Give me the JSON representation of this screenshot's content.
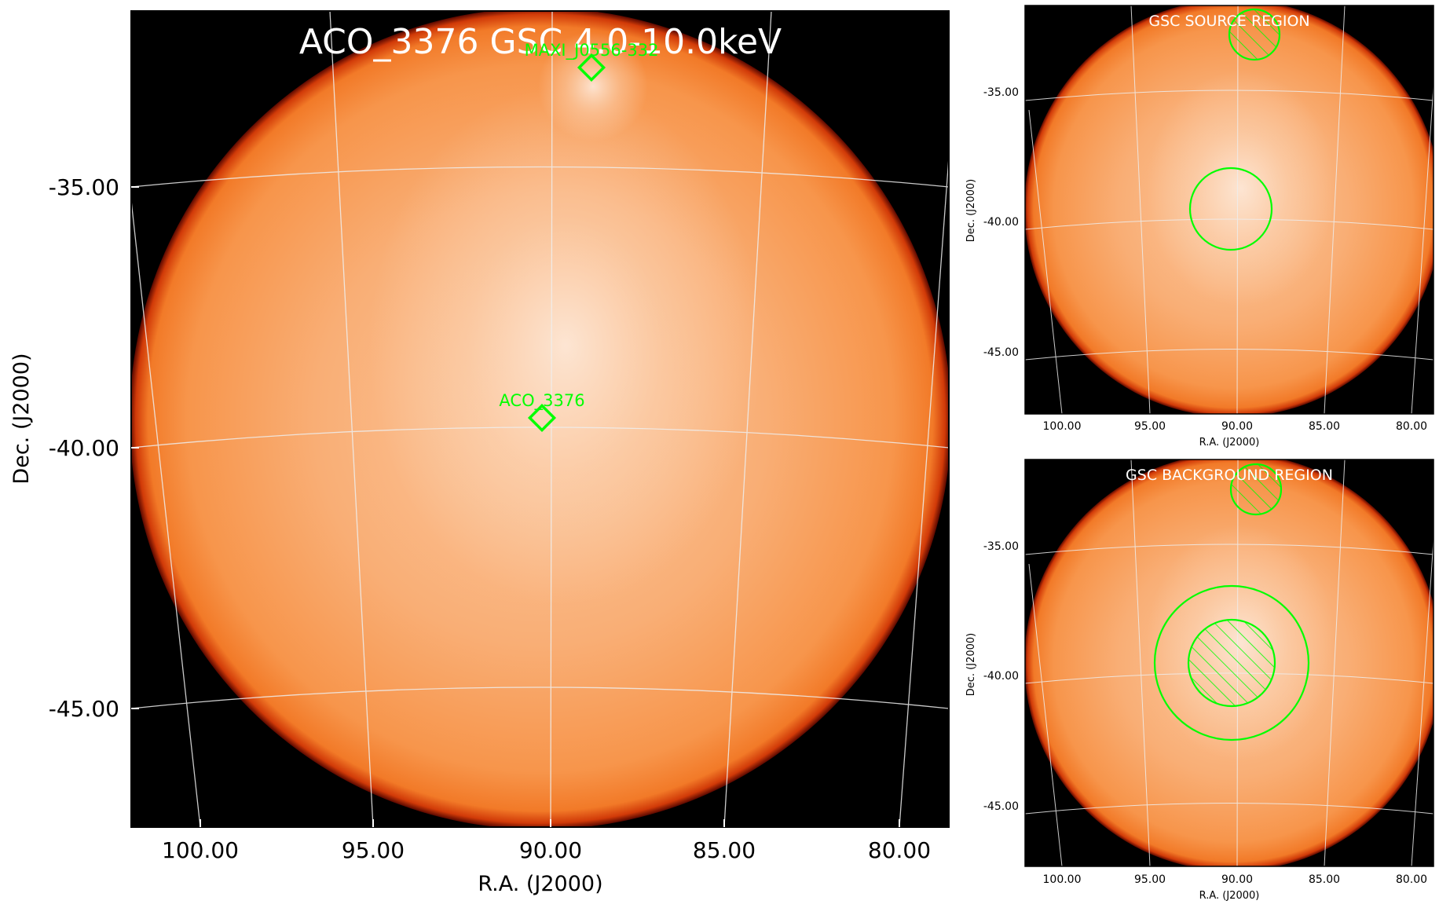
{
  "main": {
    "title": "ACO_3376 GSC 4.0-10.0keV",
    "xlabel": "R.A. (J2000)",
    "ylabel": "Dec. (J2000)",
    "xticks": [
      "100.00",
      "95.00",
      "90.00",
      "85.00",
      "80.00"
    ],
    "yticks": [
      "-35.00",
      "-40.00",
      "-45.00"
    ],
    "sources": [
      {
        "name": "MAXI_J0556-332"
      },
      {
        "name": "ACO_3376"
      }
    ]
  },
  "source_panel": {
    "title": "GSC SOURCE REGION",
    "xlabel": "R.A. (J2000)",
    "ylabel": "Dec. (J2000)",
    "xticks": [
      "100.00",
      "95.00",
      "90.00",
      "85.00",
      "80.00"
    ],
    "yticks": [
      "-35.00",
      "-40.00",
      "-45.00"
    ]
  },
  "background_panel": {
    "title": "GSC BACKGROUND REGION",
    "xlabel": "R.A. (J2000)",
    "ylabel": "Dec. (J2000)",
    "xticks": [
      "100.00",
      "95.00",
      "90.00",
      "85.00",
      "80.00"
    ],
    "yticks": [
      "-35.00",
      "-40.00",
      "-45.00"
    ]
  },
  "colors": {
    "frame_background": "#000000",
    "disk_core": "#fcd9bd",
    "disk_mid": "#f9a564",
    "disk_edge": "#f47d2c",
    "disk_rim": "#c81e00",
    "region_marker": "#00ff00",
    "grid": "#e8e8e8",
    "title_text": "#ffffff"
  }
}
